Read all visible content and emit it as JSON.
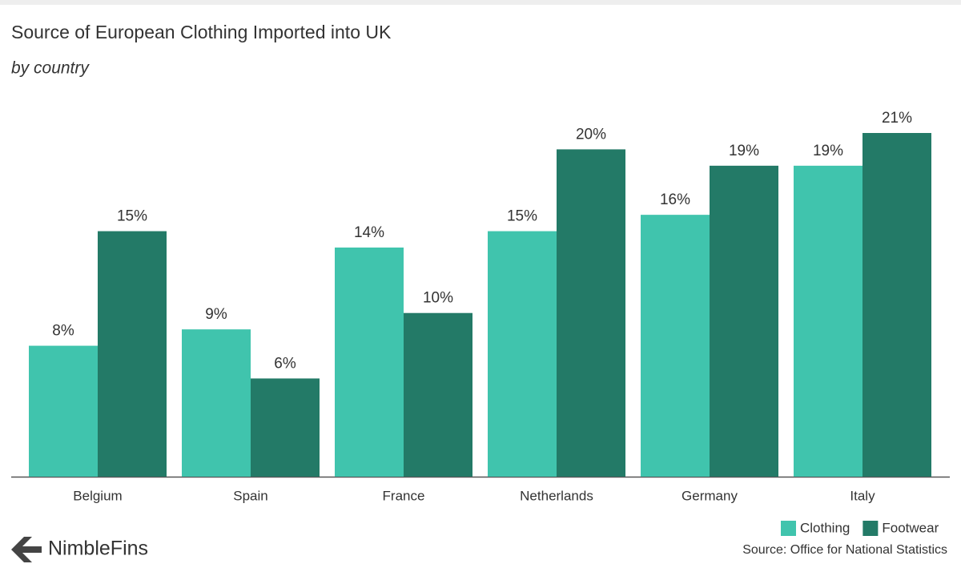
{
  "chart_data": {
    "type": "bar",
    "title": "Source of European Clothing Imported into UK",
    "subtitle": "by country",
    "categories": [
      "Belgium",
      "Spain",
      "France",
      "Netherlands",
      "Germany",
      "Italy"
    ],
    "series": [
      {
        "name": "Clothing",
        "color": "#40c4ad",
        "values": [
          8,
          9,
          14,
          15,
          16,
          19
        ],
        "value_labels": [
          "8%",
          "9%",
          "14%",
          "15%",
          "16%",
          "19%"
        ]
      },
      {
        "name": "Footwear",
        "color": "#237a67",
        "values": [
          15,
          6,
          10,
          20,
          19,
          21
        ],
        "value_labels": [
          "15%",
          "6%",
          "10%",
          "20%",
          "19%",
          "21%"
        ]
      }
    ],
    "ylim": [
      0,
      21
    ],
    "legend": "bottom-right",
    "source": "Source: Office for National Statistics",
    "brand": "NimbleFins"
  }
}
